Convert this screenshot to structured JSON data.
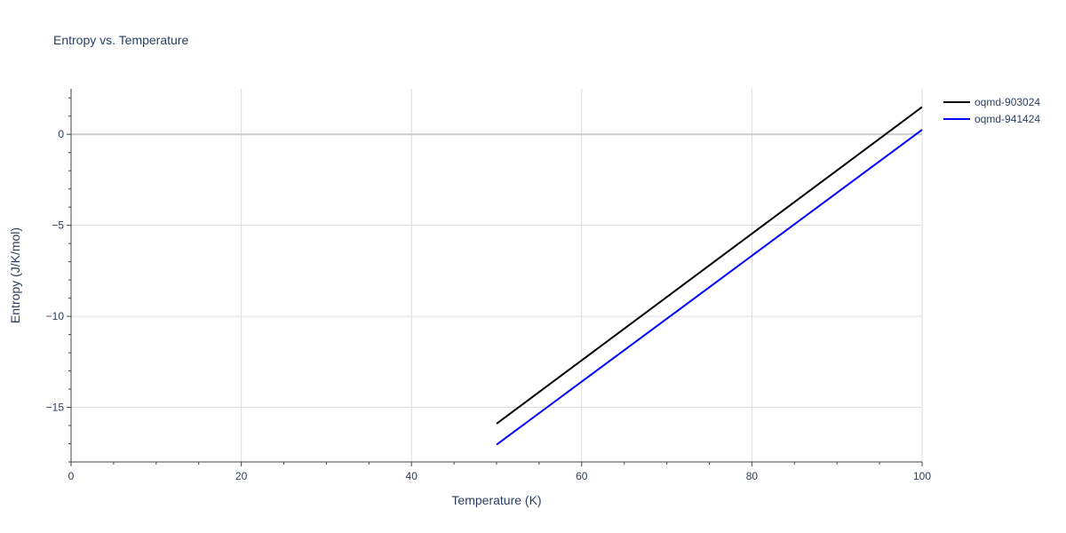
{
  "chart_data": {
    "type": "line",
    "title": "Entropy vs. Temperature",
    "xlabel": "Temperature (K)",
    "ylabel": "Entropy (J/K/mol)",
    "xlim": [
      0,
      100
    ],
    "ylim": [
      -18,
      2.5
    ],
    "x_ticks": [
      0,
      20,
      40,
      60,
      80,
      100
    ],
    "x_tick_labels": [
      "0",
      "20",
      "40",
      "60",
      "80",
      "100"
    ],
    "y_ticks": [
      0,
      -5,
      -10,
      -15
    ],
    "y_tick_labels": [
      "0",
      "−5",
      "−10",
      "−15"
    ],
    "grid": true,
    "legend_position": "top-right, outside plot",
    "series": [
      {
        "name": "oqmd-903024",
        "color": "#000000",
        "x": [
          50,
          100
        ],
        "y": [
          -15.9,
          1.5
        ]
      },
      {
        "name": "oqmd-941424",
        "color": "#0000ff",
        "x": [
          50,
          100
        ],
        "y": [
          -17.05,
          0.25
        ]
      }
    ]
  }
}
